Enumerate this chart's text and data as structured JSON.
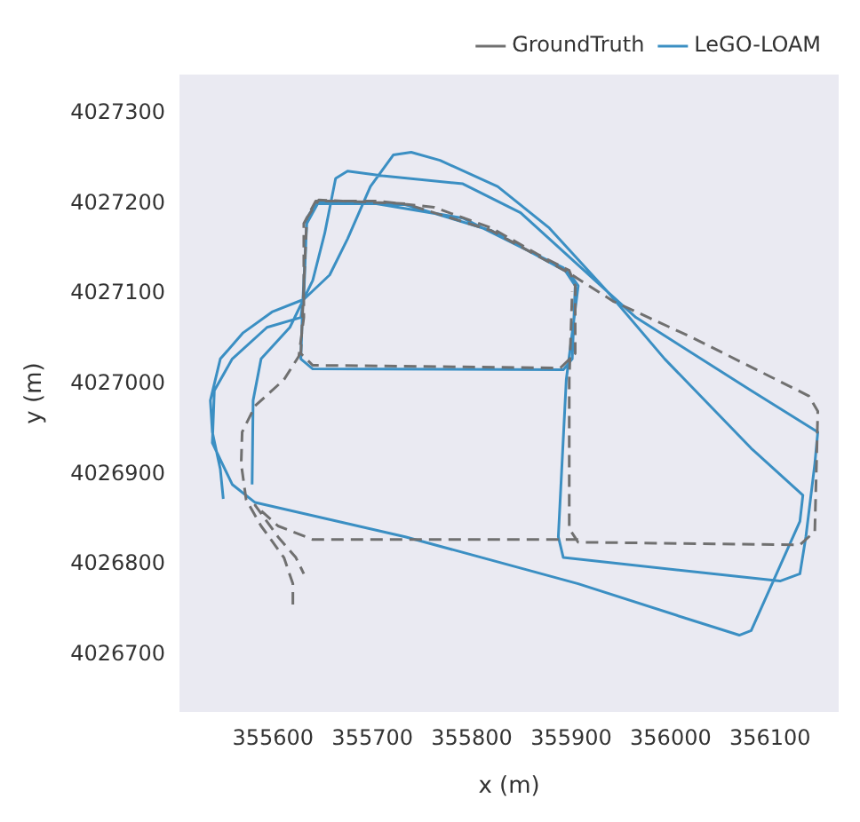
{
  "chart_data": {
    "type": "line",
    "xlabel": "x (m)",
    "ylabel": "y (m)",
    "xlim": [
      355506,
      356169
    ],
    "ylim": [
      4026637,
      4027343
    ],
    "xticks": [
      355600,
      355700,
      355800,
      355900,
      356000,
      356100
    ],
    "yticks": [
      4026700,
      4026800,
      4026900,
      4027000,
      4027100,
      4027200,
      4027300
    ],
    "grid": false,
    "legend": "top right",
    "marker": "none",
    "series": [
      {
        "name": "GroundTruth",
        "color": "#707070",
        "line_style": "dashed",
        "x": [
          355620,
          355620,
          355611,
          355588,
          355573,
          355568,
          355569,
          355582,
          355611,
          355626,
          355631,
          355631,
          355643,
          355704,
          355762,
          355820,
          355866,
          355898,
          355904,
          355904,
          355889,
          355640,
          355628,
          355631,
          355634,
          355646,
          355733,
          355820,
          355898,
          355942,
          356023,
          356139,
          356148,
          356145,
          356130,
          355907,
          355898,
          355898,
          355901,
          null,
          355907,
          355640,
          355605,
          355582,
          355605,
          355623,
          355631
        ],
        "values": [
          4026756,
          4026779,
          4026808,
          4026843,
          4026872,
          4026912,
          4026947,
          4026976,
          4027005,
          4027031,
          4027074,
          4027178,
          4027203,
          4027203,
          4027196,
          4027173,
          4027144,
          4027126,
          4027109,
          4027034,
          4027018,
          4027021,
          4027034,
          4027109,
          4027184,
          4027204,
          4027200,
          4027170,
          4027123,
          4027092,
          4027051,
          4026987,
          4026970,
          4026837,
          4026822,
          4026825,
          4026840,
          4027005,
          4027103,
          null,
          4026828,
          4026828,
          4026843,
          4026866,
          4026831,
          4026808,
          4026790
        ]
      },
      {
        "name": "LeGO-LOAM",
        "color": "#3b8fc3",
        "line_style": "solid",
        "x": [
          355550,
          355547,
          355539,
          355537,
          355547,
          355570,
          355599,
          355631,
          355657,
          355675,
          355698,
          355721,
          355739,
          355768,
          355826,
          355878,
          355936,
          355994,
          356081,
          356133,
          356130,
          356081,
          356069,
          356023,
          355907,
          355733,
          355582,
          355559,
          355539,
          355541,
          355559,
          355594,
          355628,
          355631,
          355634,
          355643,
          355704,
          355791,
          355849,
          355892,
          355904,
          355901,
          355892,
          355640,
          355628,
          355630,
          355634,
          355646,
          355733,
          355820,
          355898,
          355907,
          355895,
          355887,
          355892,
          356110,
          356130,
          356136,
          356145,
          356148,
          356081,
          355965,
          355907,
          355849,
          355791,
          355710,
          355675,
          355663,
          355652,
          355640,
          355617,
          355588,
          355580,
          355579
        ],
        "values": [
          4026873,
          4026906,
          4026947,
          4026982,
          4027028,
          4027057,
          4027080,
          4027094,
          4027121,
          4027161,
          4027219,
          4027254,
          4027257,
          4027248,
          4027219,
          4027173,
          4027103,
          4027028,
          4026929,
          4026877,
          4026848,
          4026727,
          4026722,
          4026738,
          4026779,
          4026831,
          4026869,
          4026889,
          4026935,
          4026993,
          4027028,
          4027063,
          4027074,
          4027097,
          4027184,
          4027200,
          4027200,
          4027184,
          4027152,
          4027129,
          4027109,
          4027028,
          4027016,
          4027017,
          4027028,
          4027092,
          4027178,
          4027202,
          4027199,
          4027170,
          4027123,
          4027109,
          4027005,
          4026831,
          4026808,
          4026782,
          4026790,
          4026831,
          4026912,
          4026947,
          4026993,
          4027074,
          4027132,
          4027190,
          4027222,
          4027231,
          4027236,
          4027228,
          4027167,
          4027115,
          4027063,
          4027028,
          4026982,
          4026889
        ]
      }
    ]
  }
}
